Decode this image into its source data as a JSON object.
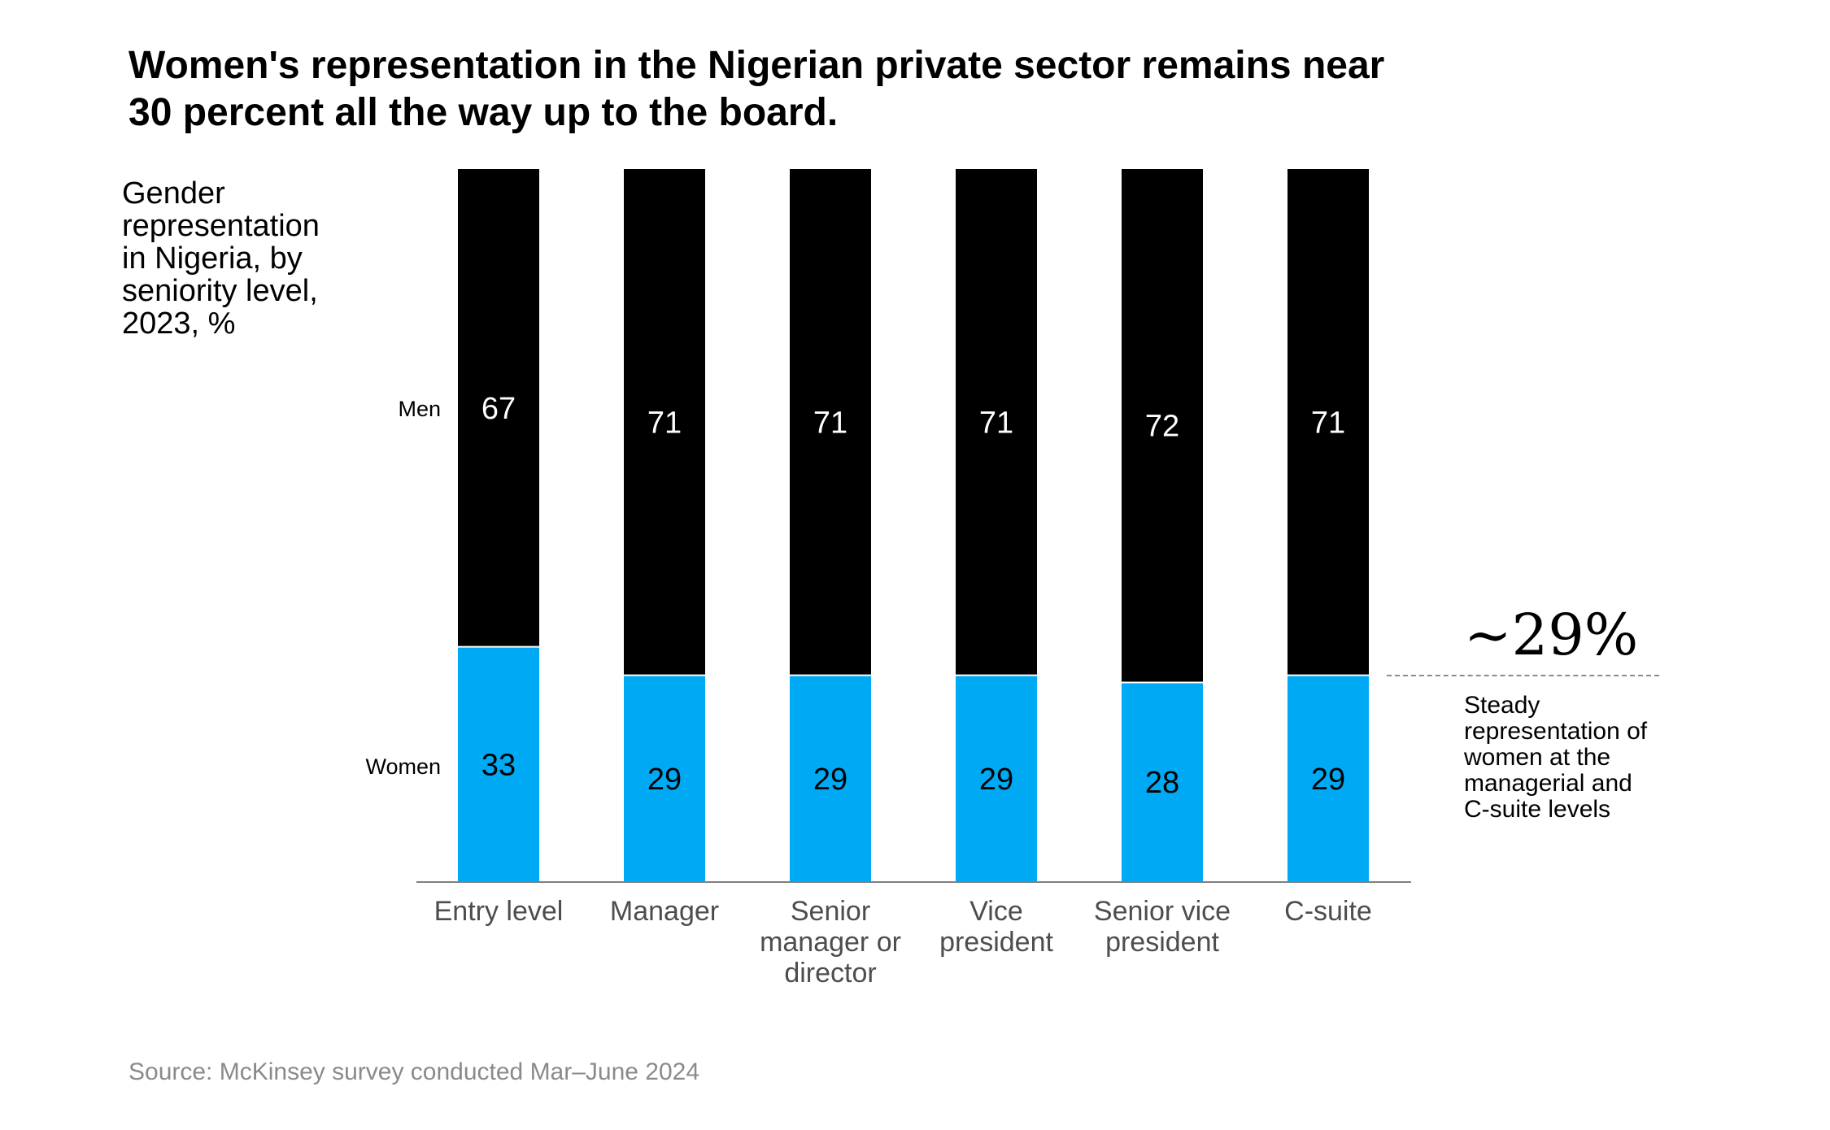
{
  "title_lines": [
    "Women's representation in the Nigerian private sector remains near",
    "30 percent all the way up to the board."
  ],
  "subtitle_lines": [
    "Gender",
    "representation",
    "in Nigeria, by",
    "seniority level,",
    "2023, %"
  ],
  "source": "Source: McKinsey survey conducted Mar–June 2024",
  "callout": {
    "value": "~29%",
    "text_lines": [
      "Steady",
      "representation of",
      "women at the",
      "managerial and",
      "C-suite levels"
    ]
  },
  "colors": {
    "men": "#000000",
    "women": "#00a9f4",
    "axis": "#7f7f7f"
  },
  "chart_data": {
    "type": "bar",
    "stacked": true,
    "categories": [
      [
        "Entry level"
      ],
      [
        "Manager"
      ],
      [
        "Senior",
        "manager or",
        "director"
      ],
      [
        "Vice",
        "president"
      ],
      [
        "Senior vice",
        "president"
      ],
      [
        "C-suite"
      ]
    ],
    "series": [
      {
        "name": "Women",
        "values": [
          33,
          29,
          29,
          29,
          28,
          29
        ]
      },
      {
        "name": "Men",
        "values": [
          67,
          71,
          71,
          71,
          72,
          71
        ]
      }
    ],
    "ylim": [
      0,
      100
    ]
  }
}
